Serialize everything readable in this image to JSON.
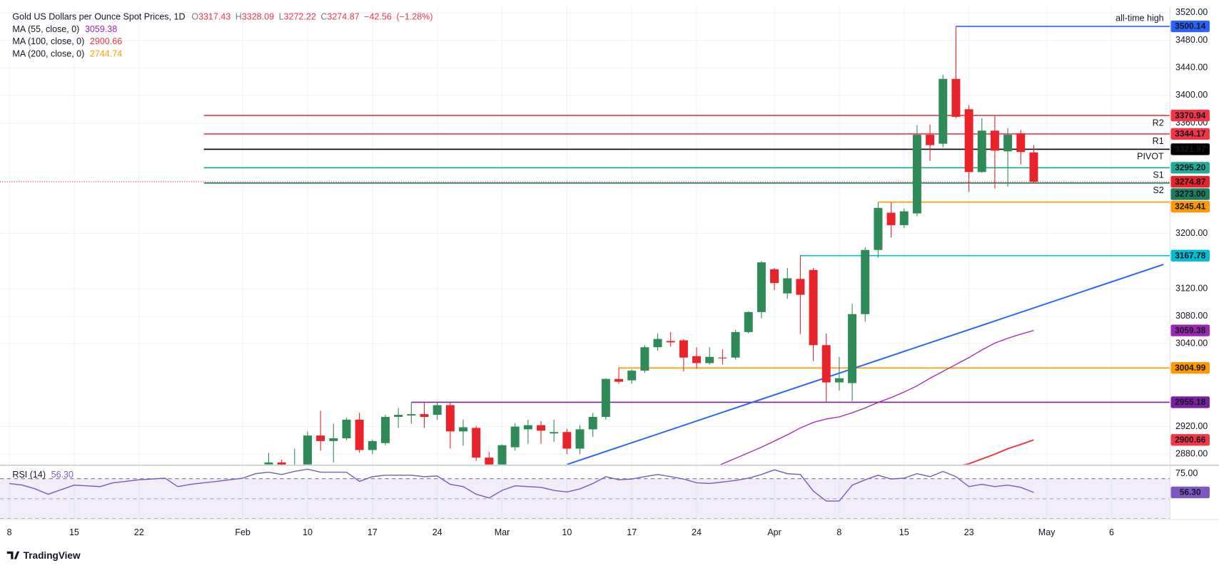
{
  "chart_data": {
    "type": "candlestick",
    "title": "Gold US Dollars per Ounce Spot Prices, 1D",
    "ohlc_letters": [
      "O",
      "H",
      "L",
      "C"
    ],
    "change": {
      "value": -42.56,
      "label": "−42.56"
    },
    "change_pct": {
      "value": -1.28,
      "label": "(−1.28%)"
    },
    "categories": [
      "8",
      null,
      null,
      null,
      null,
      "15",
      null,
      null,
      null,
      null,
      "22",
      null,
      null,
      null,
      null,
      null,
      null,
      null,
      "Feb",
      null,
      null,
      null,
      null,
      "10",
      null,
      null,
      null,
      null,
      "17",
      null,
      null,
      null,
      null,
      "24",
      null,
      null,
      null,
      null,
      "Mar",
      null,
      null,
      null,
      null,
      "10",
      null,
      null,
      null,
      null,
      "17",
      null,
      null,
      null,
      null,
      "24",
      null,
      null,
      null,
      null,
      null,
      "Apr",
      null,
      null,
      null,
      null,
      "8",
      null,
      null,
      null,
      null,
      "15",
      null,
      null,
      null,
      null,
      "23",
      null,
      null,
      null,
      null,
      null,
      "May",
      null,
      null,
      null,
      null,
      "6",
      null,
      null
    ],
    "open": [
      null,
      null,
      null,
      null,
      null,
      null,
      null,
      null,
      null,
      null,
      null,
      null,
      null,
      null,
      null,
      null,
      null,
      null,
      null,
      null,
      2865,
      2868,
      2860,
      2862,
      2907,
      2899,
      2903,
      2930,
      2886,
      2896,
      2934,
      2936,
      2938,
      2937,
      2951,
      2913,
      2918,
      2875,
      2858,
      2890,
      2916,
      2922,
      2910,
      2912,
      2888,
      2916,
      2934,
      2989,
      2987,
      3001,
      3035,
      3044,
      3045,
      3022,
      3012,
      3020,
      3020,
      3057,
      3086,
      3148,
      3113,
      3134,
      3147,
      3038,
      2984,
      2983,
      3083,
      3176,
      3230,
      3212,
      3229,
      3343,
      3330,
      3424,
      3380,
      3289,
      3349,
      3319,
      3345,
      3317.43,
      null,
      null,
      null,
      null,
      null,
      null,
      null,
      null
    ],
    "high": [
      null,
      null,
      null,
      null,
      null,
      null,
      null,
      null,
      null,
      null,
      null,
      null,
      null,
      null,
      null,
      null,
      null,
      null,
      null,
      null,
      2882,
      2872,
      2888,
      2913,
      2943,
      2924,
      2933,
      2940,
      2901,
      2937,
      2947,
      2955,
      2954,
      2956,
      2955,
      2930,
      2921,
      2883,
      2894,
      2925,
      2930,
      2928,
      2930,
      2917,
      2922,
      2940,
      2990,
      3005,
      3003,
      3038,
      3055,
      3057,
      3047,
      3035,
      3035,
      3032,
      3060,
      3087,
      3160,
      3150,
      3150,
      3168,
      3150,
      3055,
      3021,
      3098,
      3180,
      3245,
      3245,
      3236,
      3357,
      3358,
      3430,
      3500.14,
      3386,
      3367,
      3370,
      3353,
      3350,
      3328.09,
      null,
      null,
      null,
      null,
      null,
      null,
      null,
      null
    ],
    "low": [
      null,
      null,
      null,
      null,
      null,
      null,
      null,
      null,
      null,
      null,
      null,
      null,
      null,
      null,
      null,
      null,
      null,
      null,
      null,
      null,
      2850,
      2848,
      2852,
      2855,
      2885,
      2868,
      2900,
      2882,
      2880,
      2893,
      2918,
      2924,
      2918,
      2930,
      2888,
      2892,
      2870,
      2832,
      2857,
      2885,
      2895,
      2895,
      2898,
      2880,
      2880,
      2905,
      2930,
      2982,
      2982,
      2998,
      3030,
      3036,
      3000,
      3004,
      3010,
      3010,
      3017,
      3055,
      3077,
      3118,
      3105,
      3054,
      3015,
      2956,
      2972,
      2957,
      3072,
      3165,
      3194,
      3208,
      3225,
      3305,
      3325,
      3367,
      3260,
      3288,
      3265,
      3268,
      3300,
      3272.22,
      null,
      null,
      null,
      null,
      null,
      null,
      null,
      null
    ],
    "close": [
      null,
      null,
      null,
      null,
      null,
      null,
      null,
      null,
      null,
      null,
      null,
      null,
      null,
      null,
      null,
      null,
      null,
      null,
      null,
      null,
      2868,
      2860,
      2862,
      2907,
      2899,
      2903,
      2930,
      2886,
      2899,
      2934,
      2937,
      2938,
      2934,
      2951,
      2913,
      2919,
      2875,
      2858,
      2893,
      2920,
      2922,
      2914,
      2912,
      2888,
      2916,
      2934,
      2989,
      2985,
      3001,
      3035,
      3047,
      3042,
      3020,
      3012,
      3021,
      3019,
      3057,
      3086,
      3158,
      3128,
      3135,
      3111,
      3038,
      2984,
      2990,
      3083,
      3176,
      3237,
      3212,
      3232,
      3343,
      3328,
      3424,
      3369,
      3289,
      3349,
      3320,
      3343,
      3318,
      3274.87,
      null,
      null,
      null,
      null,
      null,
      null,
      null,
      null
    ],
    "up_color": "#2e8b57",
    "down_color": "#e8232a",
    "ylim": [
      2865,
      3529
    ],
    "yticks": [
      {
        "value": 3520,
        "label": "3520.00"
      },
      {
        "value": 3480,
        "label": "3480.00"
      },
      {
        "value": 3440,
        "label": "3440.00"
      },
      {
        "value": 3400,
        "label": "3400.00"
      },
      {
        "value": 3360,
        "label": "3360.00"
      },
      {
        "value": 3200,
        "label": "3200.00"
      },
      {
        "value": 3120,
        "label": "3120.00"
      },
      {
        "value": 3080,
        "label": "3080.00"
      },
      {
        "value": 3040,
        "label": "3040.00"
      },
      {
        "value": 2920,
        "label": "2920.00"
      },
      {
        "value": 2880,
        "label": "2880.00"
      }
    ],
    "grid": true,
    "levels": [
      {
        "label": "all-time high",
        "label_position": "above",
        "value": 3500.14,
        "color": "#2962ff",
        "from_index": 73
      },
      {
        "label": "R2",
        "label_position": "below",
        "value": 3370.94,
        "color": "#f23645",
        "from_index": 15
      },
      {
        "label": "R1",
        "label_position": "below",
        "value": 3344.17,
        "color": "#f23645",
        "from_index": 15
      },
      {
        "label": "PIVOT",
        "label_position": "below",
        "value": 3321.97,
        "color": "#000000",
        "from_index": 15
      },
      {
        "label": "S1",
        "label_position": "below",
        "value": 3295.2,
        "value_label": "3295.20",
        "color": "#22ab94",
        "from_index": 15
      },
      {
        "label": "S2",
        "label_position": "below",
        "value": 3273,
        "value_label": "3273.00",
        "color": "#1e7d5c",
        "from_index": 15
      },
      {
        "value": 3245.41,
        "color": "#ff9800",
        "from_index": 67
      },
      {
        "value": 3167.78,
        "color": "#00bcd4",
        "from_index": 61
      },
      {
        "value": 3004.99,
        "color": "#ff9800",
        "from_index": 47
      },
      {
        "value": 2955.18,
        "color": "#7b1fa2",
        "from_index": 31
      }
    ],
    "trendline": {
      "from_index": 43,
      "to_index": 89,
      "values": [
        2865,
        3155
      ],
      "color": "#2962ff"
    },
    "moving_averages": [
      {
        "name": "MA (55, close, 0)",
        "color": "#9c27b0",
        "last": 3059.38,
        "values": [
          null,
          null,
          null,
          null,
          null,
          null,
          null,
          null,
          null,
          null,
          null,
          null,
          null,
          null,
          null,
          null,
          null,
          null,
          null,
          null,
          null,
          null,
          null,
          null,
          null,
          null,
          null,
          null,
          null,
          null,
          null,
          null,
          null,
          null,
          null,
          null,
          null,
          null,
          null,
          null,
          null,
          null,
          null,
          null,
          null,
          null,
          null,
          null,
          null,
          null,
          null,
          null,
          null,
          null,
          2858,
          2866,
          2874,
          2882,
          2890,
          2899,
          2908,
          2918,
          2926,
          2931,
          2934,
          2940,
          2947,
          2955,
          2962,
          2970,
          2979,
          2990,
          3000,
          3010,
          3020,
          3031,
          3041,
          3048,
          3054,
          3059.38,
          null,
          null,
          null,
          null,
          null,
          null,
          null,
          null
        ]
      },
      {
        "name": "MA (100, close, 0)",
        "color": "#f23645",
        "last": 2900.66,
        "values": [
          null,
          null,
          null,
          null,
          null,
          null,
          null,
          null,
          null,
          null,
          null,
          null,
          null,
          null,
          null,
          null,
          null,
          null,
          null,
          null,
          null,
          null,
          null,
          null,
          null,
          null,
          null,
          null,
          null,
          null,
          null,
          null,
          null,
          null,
          null,
          null,
          null,
          null,
          null,
          null,
          null,
          null,
          null,
          null,
          null,
          null,
          null,
          null,
          null,
          null,
          null,
          null,
          null,
          null,
          null,
          null,
          null,
          null,
          null,
          null,
          null,
          null,
          null,
          null,
          null,
          null,
          null,
          null,
          null,
          null,
          null,
          null,
          null,
          2862,
          2866,
          2873,
          2880,
          2888,
          2894,
          2900.66,
          null,
          null,
          null,
          null,
          null,
          null,
          null,
          null
        ]
      },
      {
        "name": "MA (200, close, 0)",
        "color": "#ff9800",
        "last": 2744.74
      }
    ],
    "rsi": {
      "name": "RSI (14)",
      "color": "#7e57c2",
      "ylim": [
        30,
        82.6
      ],
      "yticks": [
        {
          "value": 75,
          "label": "75.00"
        }
      ],
      "bands": [
        30,
        70
      ],
      "midline": 50,
      "last_value_label": "56.30",
      "values": [
        65.2,
        63.6,
        59.8,
        54.5,
        59.1,
        63.6,
        62.9,
        62.1,
        65.9,
        67.4,
        68.9,
        69.7,
        70.5,
        62.1,
        64.4,
        65.9,
        67.4,
        68.9,
        70.5,
        75.0,
        76.5,
        74.2,
        77.3,
        79.5,
        76.5,
        76.5,
        76.5,
        67.4,
        72.0,
        73.5,
        73.5,
        73.5,
        72.0,
        72.7,
        64.4,
        62.1,
        54.5,
        50.8,
        58.3,
        62.9,
        62.1,
        61.4,
        58.3,
        56.8,
        59.8,
        65.2,
        72.0,
        68.9,
        69.7,
        72.0,
        74.2,
        72.0,
        69.7,
        65.9,
        65.2,
        66.7,
        68.2,
        70.5,
        74.2,
        78.8,
        75.0,
        74.2,
        57.6,
        47.7,
        47.7,
        63.6,
        68.9,
        73.5,
        69.7,
        70.5,
        75.0,
        72.0,
        77.3,
        72.0,
        62.1,
        64.4,
        62.1,
        63.6,
        61.4,
        56.3,
        null,
        null,
        null,
        null,
        null,
        null,
        null,
        null
      ]
    },
    "brand": "TradingView"
  }
}
